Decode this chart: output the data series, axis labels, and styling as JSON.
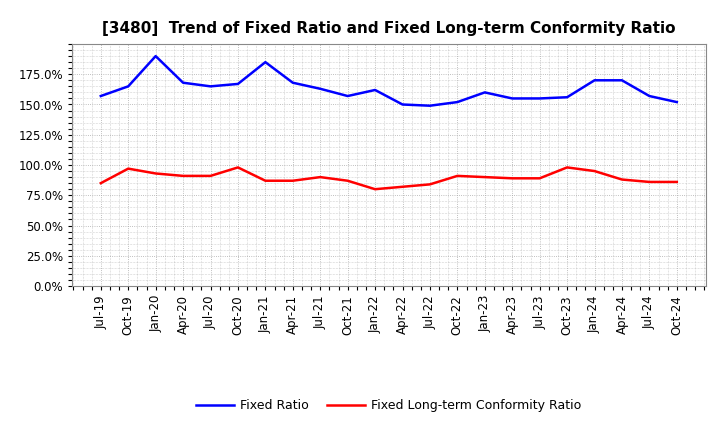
{
  "title": "[3480]  Trend of Fixed Ratio and Fixed Long-term Conformity Ratio",
  "x_labels": [
    "Jul-19",
    "Oct-19",
    "Jan-20",
    "Apr-20",
    "Jul-20",
    "Oct-20",
    "Jan-21",
    "Apr-21",
    "Jul-21",
    "Oct-21",
    "Jan-22",
    "Apr-22",
    "Jul-22",
    "Oct-22",
    "Jan-23",
    "Apr-23",
    "Jul-23",
    "Oct-23",
    "Jan-24",
    "Apr-24",
    "Jul-24",
    "Oct-24"
  ],
  "fixed_ratio": [
    1.57,
    1.65,
    1.9,
    1.68,
    1.65,
    1.67,
    1.85,
    1.68,
    1.63,
    1.57,
    1.62,
    1.5,
    1.49,
    1.52,
    1.6,
    1.55,
    1.55,
    1.56,
    1.7,
    1.7,
    1.57,
    1.52
  ],
  "fixed_lt_ratio": [
    0.85,
    0.97,
    0.93,
    0.91,
    0.91,
    0.98,
    0.87,
    0.87,
    0.9,
    0.87,
    0.8,
    0.82,
    0.84,
    0.91,
    0.9,
    0.89,
    0.89,
    0.98,
    0.95,
    0.88,
    0.86,
    0.86
  ],
  "fixed_ratio_color": "#0000FF",
  "fixed_lt_ratio_color": "#FF0000",
  "ylim": [
    0.0,
    2.0
  ],
  "yticks": [
    0.0,
    0.25,
    0.5,
    0.75,
    1.0,
    1.25,
    1.5,
    1.75
  ],
  "background_color": "#FFFFFF",
  "grid_color": "#AAAAAA",
  "legend_fixed": "Fixed Ratio",
  "legend_fixed_lt": "Fixed Long-term Conformity Ratio",
  "title_fontsize": 11,
  "tick_fontsize": 8.5,
  "legend_fontsize": 9,
  "linewidth": 1.8
}
